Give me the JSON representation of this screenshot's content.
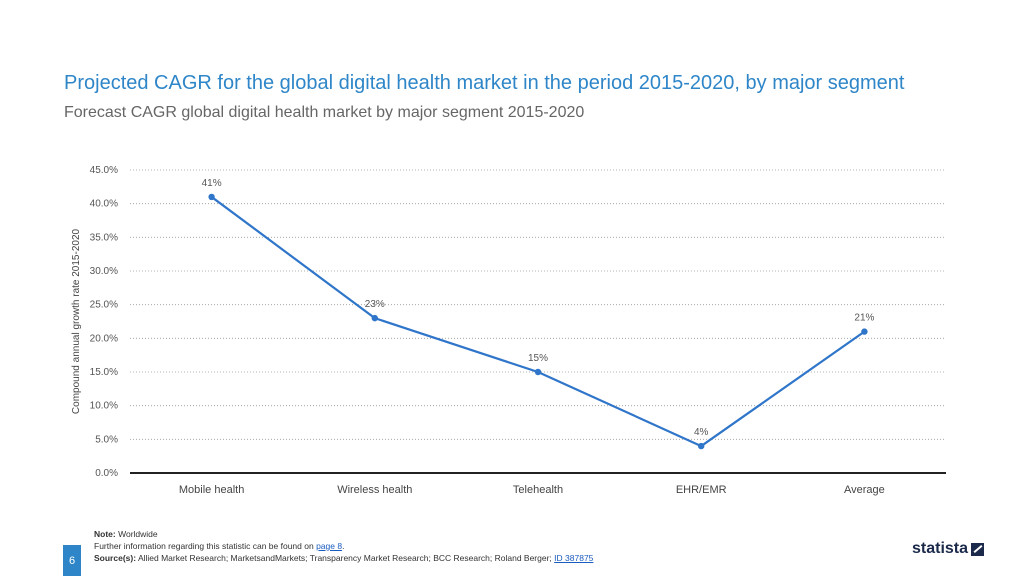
{
  "header": {
    "title": "Projected CAGR for the global digital health market in the period 2015-2020, by major segment",
    "subtitle": "Forecast CAGR global digital health market by major segment 2015-2020"
  },
  "chart_data": {
    "type": "line",
    "title": "Projected CAGR for the global digital health market in the period 2015-2020, by major segment",
    "xlabel": "",
    "ylabel": "Compound annual growth rate 2015-2020",
    "categories": [
      "Mobile health",
      "Wireless health",
      "Telehealth",
      "EHR/EMR",
      "Average"
    ],
    "values": [
      41,
      23,
      15,
      4,
      21
    ],
    "data_labels": [
      "41%",
      "23%",
      "15%",
      "4%",
      "21%"
    ],
    "ylim": [
      0,
      45
    ],
    "yticks": [
      0,
      5,
      10,
      15,
      20,
      25,
      30,
      35,
      40,
      45
    ],
    "ytick_labels": [
      "0.0%",
      "5.0%",
      "10.0%",
      "15.0%",
      "20.0%",
      "25.0%",
      "30.0%",
      "35.0%",
      "40.0%",
      "45.0%"
    ],
    "grid": true,
    "line_color": "#2f75c9"
  },
  "footer": {
    "note_label": "Note:",
    "note_text": "Worldwide",
    "further_text": "Further information regarding this statistic can be found on",
    "further_link": "page 8",
    "source_label": "Source(s):",
    "source_text": "Allied Market Research; MarketsandMarkets; Transparency Market Research; BCC Research; Roland Berger;",
    "source_id": "ID 387875",
    "page_number": "6",
    "logo_text": "statista"
  }
}
